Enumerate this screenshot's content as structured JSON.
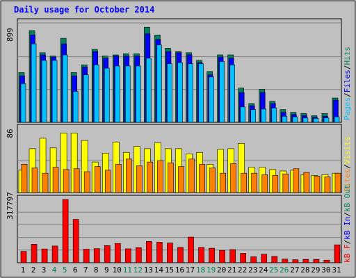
{
  "title": "Daily usage for October 2014",
  "colors": {
    "background": "#c0c0c0",
    "title": "#0000ff",
    "hits": "#00805c",
    "files": "#0000ff",
    "pages": "#00c0ff",
    "visits": "#ffff00",
    "sites": "#ff8000",
    "kb_in": "#0000ff",
    "kb_out": "#00805c",
    "kb_f": "#ff0000",
    "weekend_label": "#00805c",
    "weekday_label": "#000000"
  },
  "chart_data": [
    {
      "type": "bar",
      "name_legend": [
        "Pages",
        "/",
        "Files",
        "/",
        "Hits"
      ],
      "ymax_label": "899",
      "ylim": [
        0,
        899
      ],
      "categories": [
        "1",
        "2",
        "3",
        "4",
        "5",
        "6",
        "7",
        "8",
        "9",
        "10",
        "11",
        "12",
        "13",
        "14",
        "15",
        "16",
        "17",
        "18",
        "19",
        "20",
        "21",
        "22",
        "23",
        "24",
        "25",
        "26",
        "27",
        "28",
        "29",
        "30",
        "31"
      ],
      "series": [
        {
          "name": "Hits",
          "values": [
            450,
            830,
            630,
            600,
            760,
            450,
            520,
            660,
            600,
            610,
            620,
            620,
            860,
            790,
            670,
            640,
            630,
            560,
            460,
            610,
            610,
            310,
            170,
            300,
            190,
            115,
            90,
            80,
            60,
            80,
            220
          ]
        },
        {
          "name": "Files",
          "values": [
            420,
            790,
            610,
            590,
            710,
            420,
            500,
            640,
            580,
            600,
            600,
            600,
            800,
            750,
            640,
            630,
            610,
            540,
            430,
            590,
            580,
            270,
            150,
            270,
            170,
            90,
            70,
            60,
            45,
            55,
            200
          ]
        },
        {
          "name": "Pages",
          "values": [
            350,
            710,
            560,
            560,
            610,
            280,
            430,
            520,
            490,
            510,
            510,
            510,
            580,
            700,
            530,
            540,
            530,
            530,
            410,
            550,
            520,
            140,
            115,
            120,
            130,
            55,
            50,
            40,
            35,
            40,
            50
          ]
        }
      ]
    },
    {
      "type": "bar",
      "name_legend": [
        "Sites",
        "/",
        "Visits"
      ],
      "ymax_label": "86",
      "ylim": [
        0,
        86
      ],
      "categories": [
        "1",
        "2",
        "3",
        "4",
        "5",
        "6",
        "7",
        "8",
        "9",
        "10",
        "11",
        "12",
        "13",
        "14",
        "15",
        "16",
        "17",
        "18",
        "19",
        "20",
        "21",
        "22",
        "23",
        "24",
        "25",
        "26",
        "27",
        "28",
        "29",
        "30",
        "31"
      ],
      "series": [
        {
          "name": "Visits",
          "values": [
            30,
            59,
            73,
            60,
            80,
            80,
            70,
            41,
            53,
            68,
            54,
            62,
            59,
            67,
            59,
            59,
            52,
            54,
            38,
            58,
            59,
            66,
            34,
            34,
            31,
            29,
            30,
            24,
            23,
            24,
            26
          ]
        },
        {
          "name": "Sites",
          "values": [
            38,
            33,
            26,
            34,
            31,
            32,
            28,
            35,
            30,
            38,
            45,
            36,
            41,
            43,
            40,
            35,
            45,
            38,
            33,
            26,
            39,
            26,
            26,
            24,
            23,
            25,
            32,
            27,
            22,
            21,
            26
          ]
        }
      ]
    },
    {
      "type": "bar",
      "name_legend": [
        "kB F",
        "/",
        "kB In",
        "/",
        "kB Out"
      ],
      "ymax_label": "317797",
      "ylim": [
        0,
        317797
      ],
      "categories": [
        "1",
        "2",
        "3",
        "4",
        "5",
        "6",
        "7",
        "8",
        "9",
        "10",
        "11",
        "12",
        "13",
        "14",
        "15",
        "16",
        "17",
        "18",
        "19",
        "20",
        "21",
        "22",
        "23",
        "24",
        "25",
        "26",
        "27",
        "28",
        "29",
        "30",
        "31"
      ],
      "series": [
        {
          "name": "kB F",
          "values": [
            57000,
            93000,
            69000,
            84000,
            317797,
            218000,
            68000,
            71000,
            86000,
            97000,
            70000,
            76000,
            107000,
            103000,
            99000,
            77000,
            129000,
            77000,
            73000,
            62000,
            66000,
            47000,
            30000,
            43000,
            32000,
            18000,
            15000,
            17000,
            17000,
            13000,
            90000
          ]
        }
      ]
    }
  ],
  "weekend_days": [
    4,
    5,
    11,
    12,
    18,
    19,
    25,
    26
  ]
}
